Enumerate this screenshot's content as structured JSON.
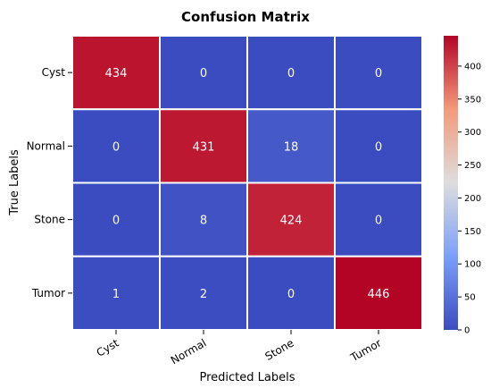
{
  "chart_data": {
    "type": "heatmap",
    "title": "Confusion Matrix",
    "xlabel": "Predicted Labels",
    "ylabel": "True Labels",
    "x_categories": [
      "Cyst",
      "Normal",
      "Stone",
      "Tumor"
    ],
    "y_categories": [
      "Cyst",
      "Normal",
      "Stone",
      "Tumor"
    ],
    "values": [
      [
        434,
        0,
        0,
        0
      ],
      [
        0,
        431,
        18,
        0
      ],
      [
        0,
        8,
        424,
        0
      ],
      [
        1,
        2,
        0,
        446
      ]
    ],
    "colormap": "coolwarm",
    "color_range": [
      0,
      446
    ],
    "colorbar_ticks": [
      0,
      50,
      100,
      150,
      200,
      250,
      300,
      350,
      400
    ],
    "annotations": true
  }
}
